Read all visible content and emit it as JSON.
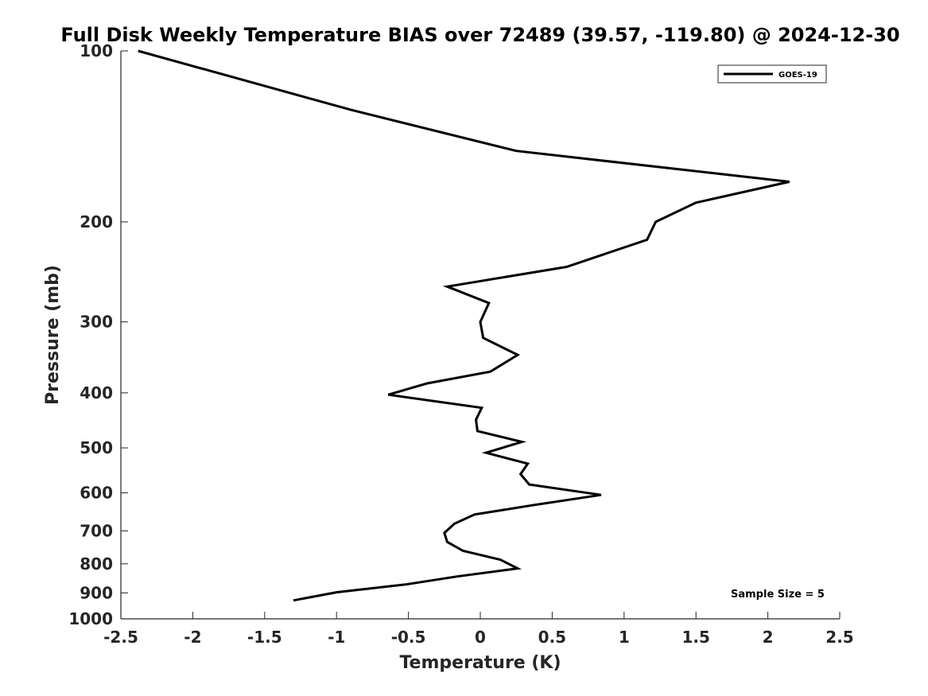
{
  "chart_data": {
    "type": "line",
    "title": "Full Disk Weekly Temperature BIAS over 72489 (39.57, -119.80) @ 2024-12-30",
    "xlabel": "Temperature (K)",
    "ylabel": "Pressure (mb)",
    "xlim": [
      -2.5,
      2.5
    ],
    "ylim": [
      100,
      1000
    ],
    "yscale": "log",
    "yreversed": true,
    "xticks": [
      -2.5,
      -2,
      -1.5,
      -1,
      -0.5,
      0,
      0.5,
      1,
      1.5,
      2,
      2.5
    ],
    "xtick_labels": [
      "-2.5",
      "-2",
      "-1.5",
      "-1",
      "-0.5",
      "0",
      "0.5",
      "1",
      "1.5",
      "2",
      "2.5"
    ],
    "yticks": [
      100,
      200,
      300,
      400,
      500,
      600,
      700,
      800,
      900,
      1000
    ],
    "ytick_labels": [
      "100",
      "200",
      "300",
      "400",
      "500",
      "600",
      "700",
      "800",
      "900",
      "1000"
    ],
    "grid": false,
    "legend_position": "top-right",
    "annotation": "Sample Size = 5",
    "series": [
      {
        "name": "GOES-19",
        "color": "#000000",
        "points": [
          [
            -2.38,
            100
          ],
          [
            -0.9,
            127
          ],
          [
            0.25,
            150
          ],
          [
            2.15,
            170
          ],
          [
            1.5,
            185
          ],
          [
            1.22,
            200
          ],
          [
            1.16,
            215
          ],
          [
            0.6,
            240
          ],
          [
            -0.23,
            260
          ],
          [
            0.06,
            278
          ],
          [
            0.0,
            300
          ],
          [
            0.02,
            320
          ],
          [
            0.26,
            343
          ],
          [
            0.07,
            367
          ],
          [
            -0.37,
            385
          ],
          [
            -0.64,
            403
          ],
          [
            0.01,
            425
          ],
          [
            -0.03,
            446
          ],
          [
            -0.02,
            467
          ],
          [
            0.29,
            488
          ],
          [
            0.04,
            510
          ],
          [
            0.33,
            533
          ],
          [
            0.28,
            556
          ],
          [
            0.34,
            580
          ],
          [
            0.84,
            605
          ],
          [
            0.38,
            630
          ],
          [
            -0.04,
            655
          ],
          [
            -0.18,
            680
          ],
          [
            -0.25,
            706
          ],
          [
            -0.23,
            732
          ],
          [
            -0.12,
            759
          ],
          [
            0.14,
            787
          ],
          [
            0.26,
            815
          ],
          [
            -0.16,
            842
          ],
          [
            -0.52,
            870
          ],
          [
            -1.0,
            898
          ],
          [
            -1.3,
            928
          ]
        ]
      }
    ]
  }
}
